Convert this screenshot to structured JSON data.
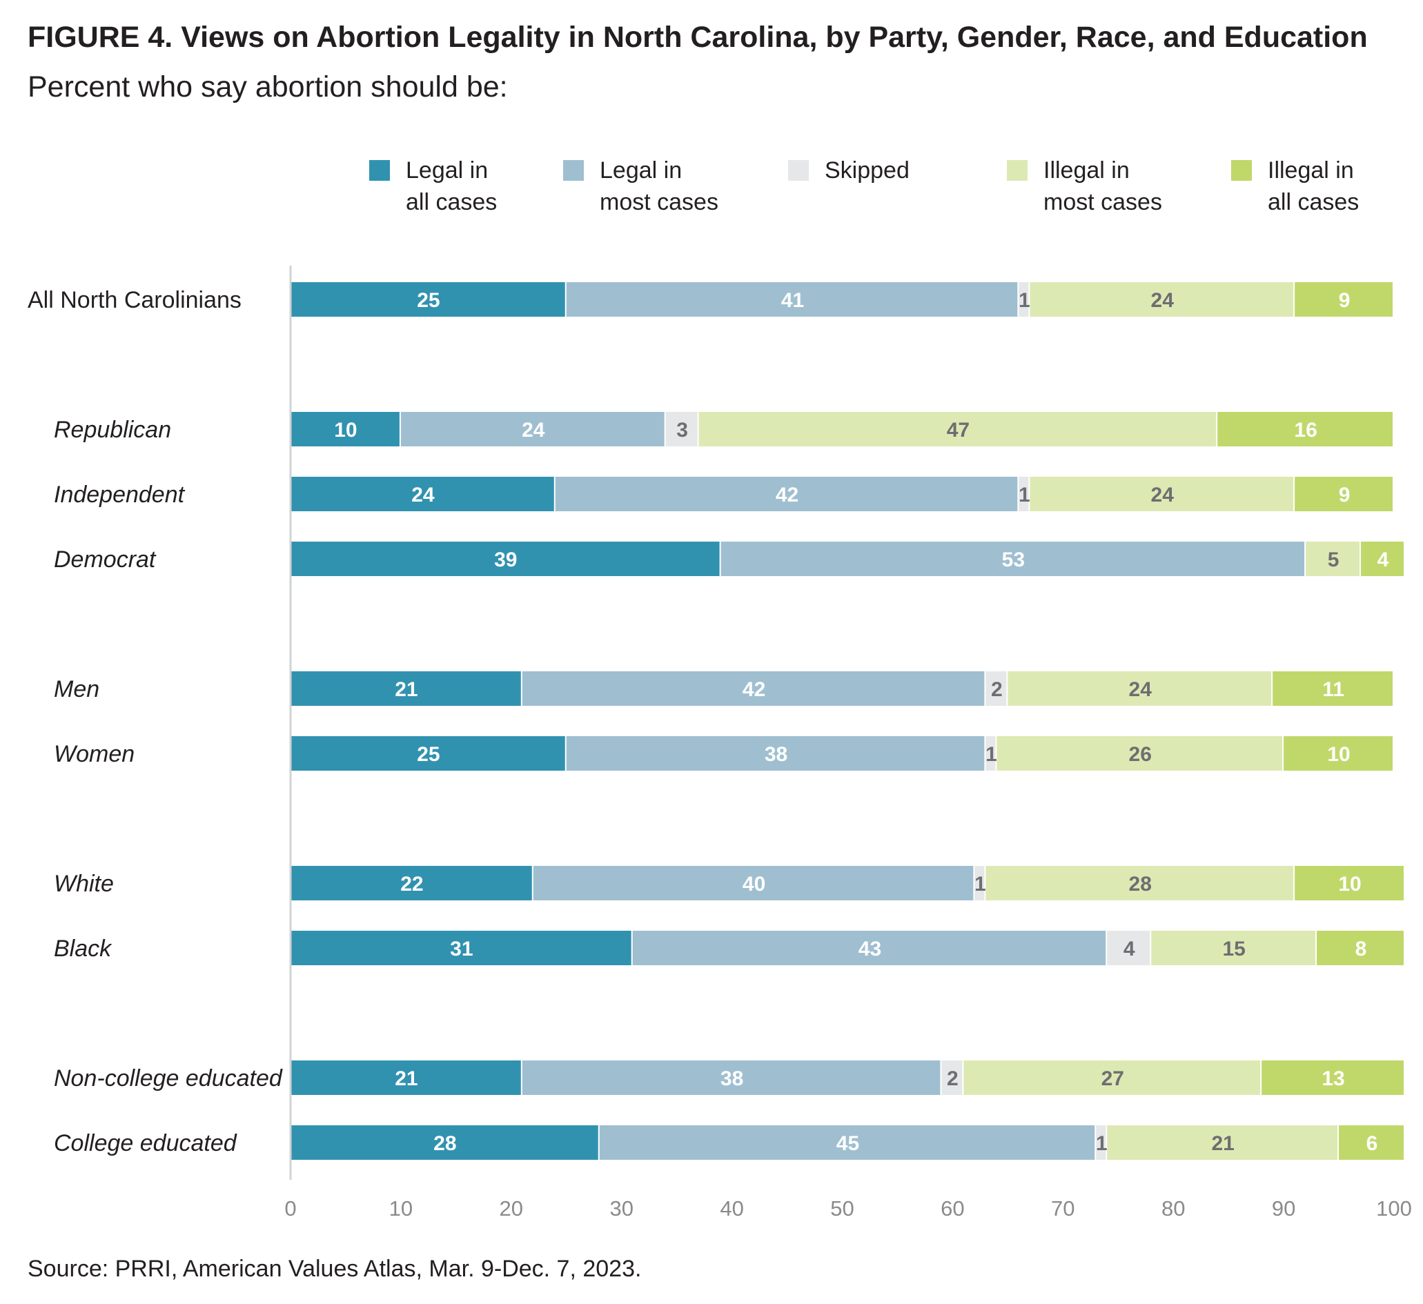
{
  "title": "FIGURE 4. Views on Abortion Legality in North Carolina, by Party, Gender, Race, and Education",
  "subtitle": "Percent who say abortion should be:",
  "source": "Source: PRRI, American Values Atlas, Mar. 9-Dec. 7, 2023.",
  "chart_data": {
    "type": "bar",
    "orientation": "horizontal",
    "stacked": true,
    "title": "FIGURE 4. Views on Abortion Legality in North Carolina, by Party, Gender, Race, and Education",
    "subtitle": "Percent who say abortion should be:",
    "xlim": [
      0,
      100
    ],
    "xticks": [
      0,
      10,
      20,
      30,
      40,
      50,
      60,
      70,
      80,
      90,
      100
    ],
    "grid": false,
    "legend_position": "top",
    "categories": [
      "All North Carolinians",
      "Republican",
      "Independent",
      "Democrat",
      "Men",
      "Women",
      "White",
      "Black",
      "Non-college educated",
      "College educated"
    ],
    "category_groups": [
      0,
      1,
      1,
      1,
      2,
      2,
      3,
      3,
      4,
      4
    ],
    "italic_categories": [
      false,
      true,
      true,
      true,
      true,
      true,
      true,
      true,
      true,
      true
    ],
    "series": [
      {
        "name": "Legal in all cases",
        "legend_lines": [
          "Legal in",
          "all cases"
        ],
        "color": "#3192b0",
        "label_color": "#ffffff",
        "values": [
          25,
          10,
          24,
          39,
          21,
          25,
          22,
          31,
          21,
          28
        ]
      },
      {
        "name": "Legal in most cases",
        "legend_lines": [
          "Legal in",
          "most cases"
        ],
        "color": "#9fbfd0",
        "label_color": "#ffffff",
        "values": [
          41,
          24,
          42,
          53,
          42,
          38,
          40,
          43,
          38,
          45
        ]
      },
      {
        "name": "Skipped",
        "legend_lines": [
          "Skipped"
        ],
        "color": "#e6e7e8",
        "label_color": "#6d6e71",
        "values": [
          1,
          3,
          1,
          null,
          2,
          1,
          1,
          4,
          2,
          1
        ]
      },
      {
        "name": "Illegal in most cases",
        "legend_lines": [
          "Illegal in",
          "most cases"
        ],
        "color": "#dde9b3",
        "label_color": "#6d6e71",
        "values": [
          24,
          47,
          24,
          5,
          24,
          26,
          28,
          15,
          27,
          21
        ]
      },
      {
        "name": "Illegal in all cases",
        "legend_lines": [
          "Illegal in",
          "all cases"
        ],
        "color": "#c0d86a",
        "label_color": "#ffffff",
        "values": [
          9,
          16,
          9,
          4,
          11,
          10,
          10,
          8,
          13,
          6
        ]
      }
    ]
  }
}
